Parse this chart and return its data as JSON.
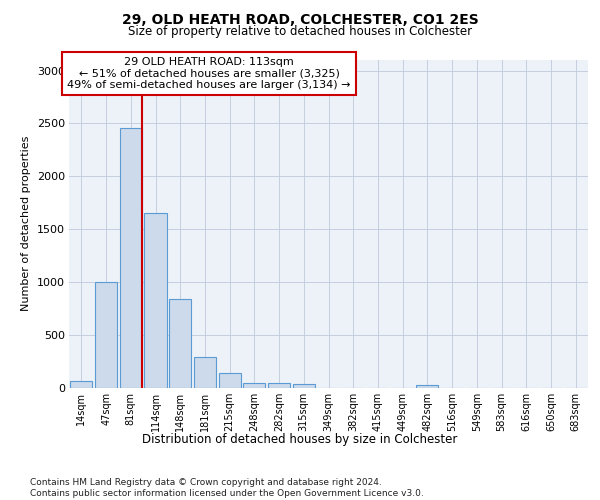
{
  "title1": "29, OLD HEATH ROAD, COLCHESTER, CO1 2ES",
  "title2": "Size of property relative to detached houses in Colchester",
  "xlabel": "Distribution of detached houses by size in Colchester",
  "ylabel": "Number of detached properties",
  "bin_labels": [
    "14sqm",
    "47sqm",
    "81sqm",
    "114sqm",
    "148sqm",
    "181sqm",
    "215sqm",
    "248sqm",
    "282sqm",
    "315sqm",
    "349sqm",
    "382sqm",
    "415sqm",
    "449sqm",
    "482sqm",
    "516sqm",
    "549sqm",
    "583sqm",
    "616sqm",
    "650sqm",
    "683sqm"
  ],
  "bar_values": [
    60,
    1000,
    2460,
    1650,
    840,
    290,
    140,
    40,
    40,
    35,
    0,
    0,
    0,
    0,
    20,
    0,
    0,
    0,
    0,
    0,
    0
  ],
  "bar_color": "#ccdaeb",
  "bar_edge_color": "#5b9bd5",
  "vline_color": "#cc0000",
  "annotation_text": "29 OLD HEATH ROAD: 113sqm\n← 51% of detached houses are smaller (3,325)\n49% of semi-detached houses are larger (3,134) →",
  "ylim_max": 3100,
  "yticks": [
    0,
    500,
    1000,
    1500,
    2000,
    2500,
    3000
  ],
  "footer_text": "Contains HM Land Registry data © Crown copyright and database right 2024.\nContains public sector information licensed under the Open Government Licence v3.0.",
  "grid_color": "#c5cee0",
  "plot_bg_color": "#edf2f8"
}
